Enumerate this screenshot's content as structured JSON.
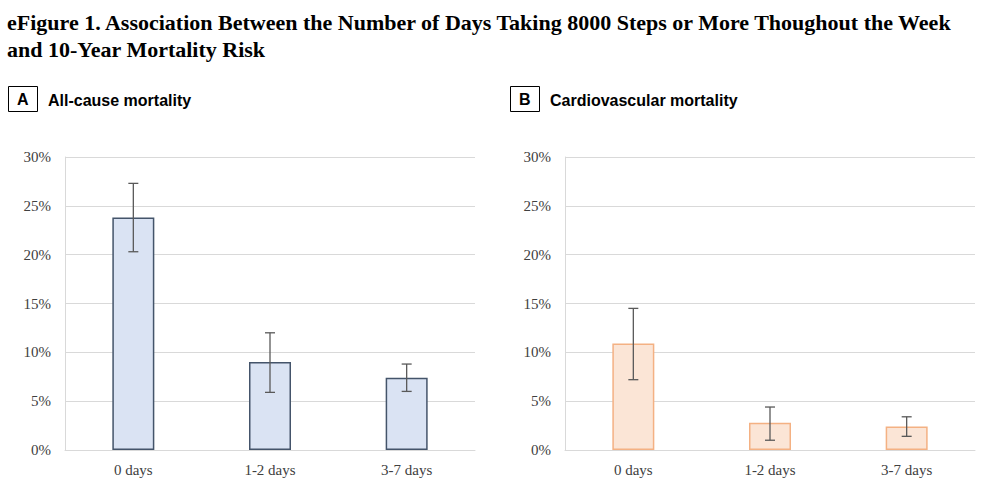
{
  "figure_title": "eFigure 1. Association Between the Number of Days Taking 8000 Steps or More Thoughout the Week and 10-Year Mortality Risk",
  "chart_data": [
    {
      "type": "bar",
      "panel": "A",
      "title": "All-cause mortality",
      "categories": [
        "0 days",
        "1-2 days",
        "3-7 days"
      ],
      "values": [
        23.8,
        9.0,
        7.4
      ],
      "ci_lower": [
        20.3,
        5.9,
        6.0
      ],
      "ci_upper": [
        27.3,
        12.0,
        8.8
      ],
      "color": "#dae3f3",
      "ylim": [
        0,
        30
      ],
      "yticks": [
        {
          "value": 0,
          "label": "0%"
        },
        {
          "value": 5,
          "label": "5%"
        },
        {
          "value": 10,
          "label": "10%"
        },
        {
          "value": 15,
          "label": "15%"
        },
        {
          "value": 20,
          "label": "20%"
        },
        {
          "value": 25,
          "label": "25%"
        },
        {
          "value": 30,
          "label": "30%"
        }
      ],
      "grid": true
    },
    {
      "type": "bar",
      "panel": "B",
      "title": "Cardiovascular mortality",
      "categories": [
        "0 days",
        "1-2 days",
        "3-7 days"
      ],
      "values": [
        10.9,
        2.8,
        2.4
      ],
      "ci_lower": [
        7.2,
        1.0,
        1.4
      ],
      "ci_upper": [
        14.5,
        4.4,
        3.4
      ],
      "color": "#fbe5d6",
      "ylim": [
        0,
        30
      ],
      "yticks": [
        {
          "value": 0,
          "label": "0%"
        },
        {
          "value": 5,
          "label": "5%"
        },
        {
          "value": 10,
          "label": "10%"
        },
        {
          "value": 15,
          "label": "15%"
        },
        {
          "value": 20,
          "label": "20%"
        },
        {
          "value": 25,
          "label": "25%"
        },
        {
          "value": 30,
          "label": "30%"
        }
      ],
      "grid": true
    }
  ]
}
